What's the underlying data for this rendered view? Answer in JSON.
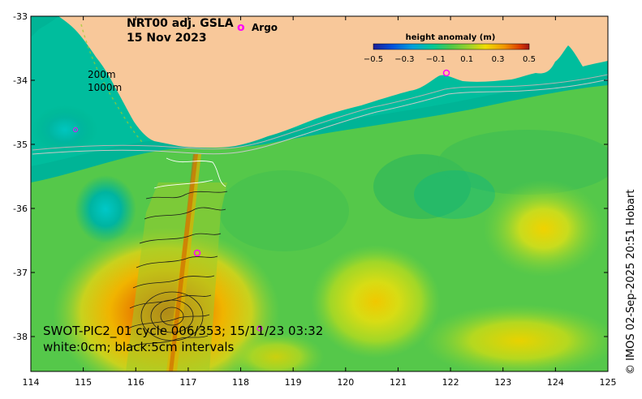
{
  "map": {
    "title_line1": "NRT00 adj. GSLA",
    "title_line2": "15 Nov 2023",
    "legend_marker_symbol": "o",
    "legend_marker_label": "Argo",
    "isobath_label_1": "200m",
    "isobath_label_2": "1000m",
    "swot_caption_line1": "SWOT-PIC2_01 cycle 006/353; 15/11/23 03:32",
    "swot_caption_line2": "white:0cm; black:5cm intervals",
    "credit": "© IMOS 02-Sep-2025 20:51 Hobart",
    "lon_ticks": [
      "114",
      "115",
      "116",
      "117",
      "118",
      "119",
      "120",
      "121",
      "122",
      "123",
      "124",
      "125"
    ],
    "lat_ticks": [
      "-33",
      "-34",
      "-35",
      "-36",
      "-37",
      "-38"
    ],
    "colorbar": {
      "title": "height anomaly (m)",
      "tick_labels": [
        "−0.5",
        "−0.3",
        "−0.1",
        "0.1",
        "0.3",
        "0.5"
      ]
    },
    "colors": {
      "land": "#f8c89a",
      "ocean_base": "#55c84a",
      "shelf": "#00b496",
      "warm_core": "#e06000",
      "argo": "#ff00ff",
      "isobath": "#b4b4b4"
    }
  }
}
